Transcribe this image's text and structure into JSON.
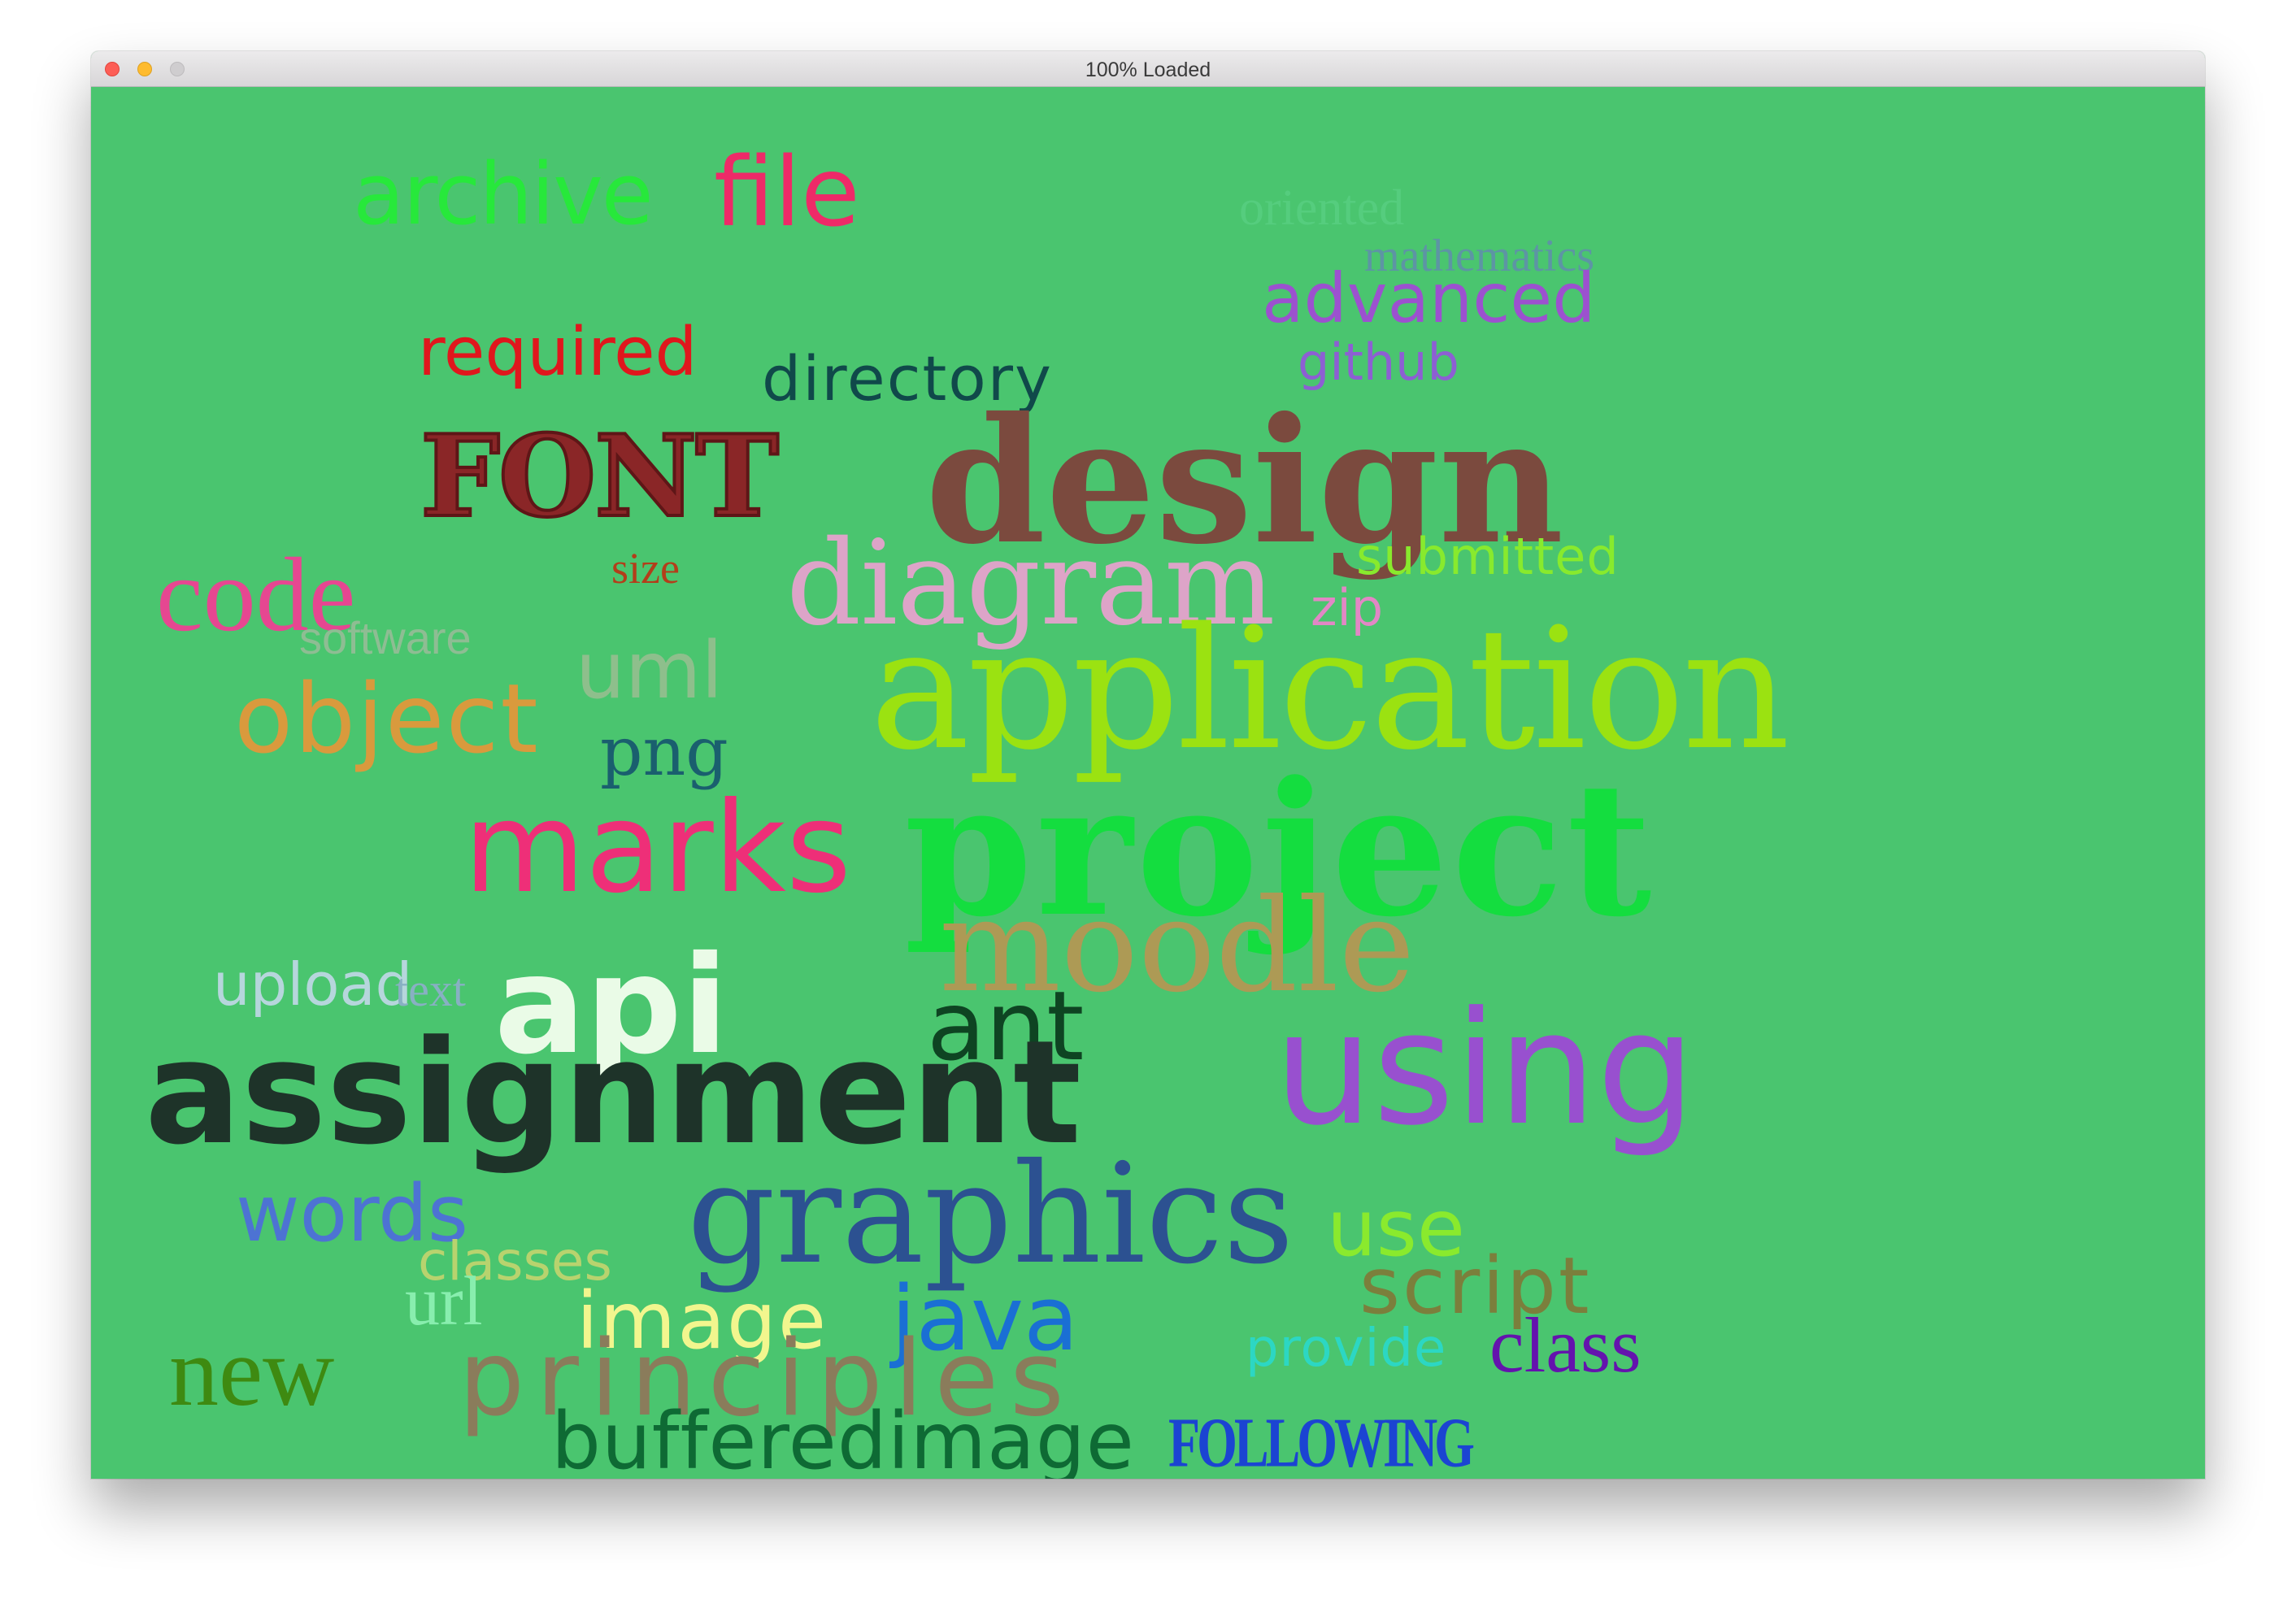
{
  "window": {
    "title": "100% Loaded"
  },
  "cloud": {
    "words": [
      {
        "id": "archive",
        "text": "archive",
        "color": "#27e83b"
      },
      {
        "id": "file",
        "text": "file",
        "color": "#ee2a68"
      },
      {
        "id": "oriented",
        "text": "oriented",
        "color": "#55cd7e"
      },
      {
        "id": "mathematics",
        "text": "mathematics",
        "color": "#5d95a4"
      },
      {
        "id": "advanced",
        "text": "advanced",
        "color": "#9c51cf"
      },
      {
        "id": "required",
        "text": "required",
        "color": "#e0171d"
      },
      {
        "id": "directory",
        "text": "directory",
        "color": "#10494a"
      },
      {
        "id": "github",
        "text": "github",
        "color": "#8d5fd3"
      },
      {
        "id": "font",
        "text": "FONT",
        "color": "#8a2627"
      },
      {
        "id": "design",
        "text": "design",
        "color": "#7b4a3e"
      },
      {
        "id": "size",
        "text": "size",
        "color": "#b33e1a"
      },
      {
        "id": "code",
        "text": "code",
        "color": "#e64791"
      },
      {
        "id": "diagram",
        "text": "diagram",
        "color": "#dda4c8"
      },
      {
        "id": "submitted",
        "text": "submitted",
        "color": "#88ea2d"
      },
      {
        "id": "zip",
        "text": "zip",
        "color": "#e287c5"
      },
      {
        "id": "software",
        "text": "software",
        "color": "#8ebd93"
      },
      {
        "id": "uml",
        "text": "uml",
        "color": "#8ebf8c"
      },
      {
        "id": "application",
        "text": "application",
        "color": "#9be211"
      },
      {
        "id": "object",
        "text": "object",
        "color": "#d99a3d"
      },
      {
        "id": "png",
        "text": "png",
        "color": "#1a5f6e"
      },
      {
        "id": "marks",
        "text": "marks",
        "color": "#ee2f78"
      },
      {
        "id": "project",
        "text": "project",
        "color": "#14dd3f"
      },
      {
        "id": "moodle",
        "text": "moodle",
        "color": "#ad9a55"
      },
      {
        "id": "upload",
        "text": "upload",
        "color": "#b6d6dc"
      },
      {
        "id": "text",
        "text": "text",
        "color": "#88b0c3"
      },
      {
        "id": "api",
        "text": "api",
        "color": "#eafbe7"
      },
      {
        "id": "ant",
        "text": "ant",
        "color": "#0e4422"
      },
      {
        "id": "using",
        "text": "using",
        "color": "#9850cf"
      },
      {
        "id": "assignment",
        "text": "assignment",
        "color": "#1e3329"
      },
      {
        "id": "words",
        "text": "words",
        "color": "#4d73d3"
      },
      {
        "id": "graphics",
        "text": "graphics",
        "color": "#2c5191"
      },
      {
        "id": "use",
        "text": "use",
        "color": "#8aea2d"
      },
      {
        "id": "classes",
        "text": "classes",
        "color": "#b8d36e"
      },
      {
        "id": "url",
        "text": "url",
        "color": "#88eeae"
      },
      {
        "id": "image",
        "text": "image",
        "color": "#f2f68e"
      },
      {
        "id": "java",
        "text": "java",
        "color": "#1a6fd4"
      },
      {
        "id": "script",
        "text": "script",
        "color": "#7b7f3c"
      },
      {
        "id": "provide",
        "text": "provide",
        "color": "#2cd7c3"
      },
      {
        "id": "class",
        "text": "class",
        "color": "#6413ad"
      },
      {
        "id": "new",
        "text": "new",
        "color": "#3e8a11"
      },
      {
        "id": "principles",
        "text": "principles",
        "color": "#8a7c5b"
      },
      {
        "id": "bufferedimage",
        "text": "bufferedimage",
        "color": "#0e6a34"
      },
      {
        "id": "following",
        "text": "FOLLOWING",
        "color": "#1b44d2"
      }
    ]
  }
}
